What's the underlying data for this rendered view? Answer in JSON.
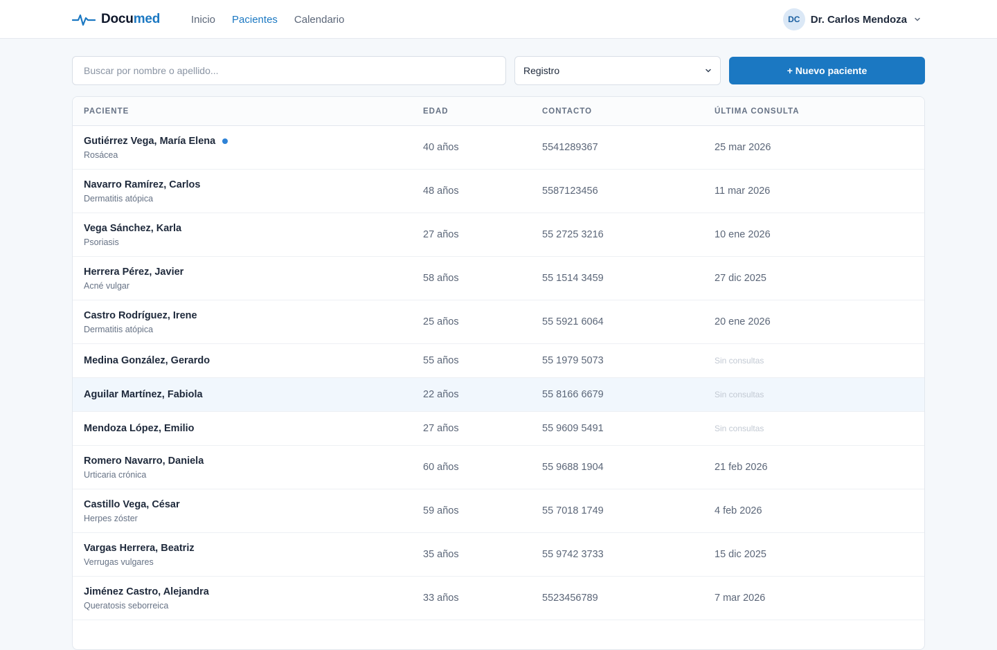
{
  "brand": {
    "name_main": "Docu",
    "name_accent": "med",
    "logo_icon": "pulse-icon",
    "accent_color": "#1b78c2"
  },
  "nav": [
    {
      "label": "Inicio",
      "active": false
    },
    {
      "label": "Pacientes",
      "active": true
    },
    {
      "label": "Calendario",
      "active": false
    }
  ],
  "user": {
    "initials": "DC",
    "name": "Dr. Carlos Mendoza"
  },
  "toolbar": {
    "search_placeholder": "Buscar por nombre o apellido...",
    "sort_value": "Registro",
    "new_button": "+ Nuevo paciente"
  },
  "table": {
    "columns": [
      "PACIENTE",
      "EDAD",
      "CONTACTO",
      "ÚLTIMA CONSULTA"
    ],
    "rows": [
      {
        "name": "Gutiérrez Vega, María Elena",
        "diagnosis": "Rosácea",
        "age": "40 años",
        "contact": "5541289367",
        "last": "25 mar 2026",
        "dot": true
      },
      {
        "name": "Navarro Ramírez, Carlos",
        "diagnosis": "Dermatitis atópica",
        "age": "48 años",
        "contact": "5587123456",
        "last": "11 mar 2026"
      },
      {
        "name": "Vega Sánchez, Karla",
        "diagnosis": "Psoriasis",
        "age": "27 años",
        "contact": "55 2725 3216",
        "last": "10 ene 2026"
      },
      {
        "name": "Herrera Pérez, Javier",
        "diagnosis": "Acné vulgar",
        "age": "58 años",
        "contact": "55 1514 3459",
        "last": "27 dic 2025"
      },
      {
        "name": "Castro Rodríguez, Irene",
        "diagnosis": "Dermatitis atópica",
        "age": "25 años",
        "contact": "55 5921 6064",
        "last": "20 ene 2026"
      },
      {
        "name": "Medina González, Gerardo",
        "diagnosis": "",
        "age": "55 años",
        "contact": "55 1979 5073",
        "last": "Sin consultas",
        "muted": true
      },
      {
        "name": "Aguilar Martínez, Fabiola",
        "diagnosis": "",
        "age": "22 años",
        "contact": "55 8166 6679",
        "last": "Sin consultas",
        "muted": true,
        "hover": true
      },
      {
        "name": "Mendoza López, Emilio",
        "diagnosis": "",
        "age": "27 años",
        "contact": "55 9609 5491",
        "last": "Sin consultas",
        "muted": true
      },
      {
        "name": "Romero Navarro, Daniela",
        "diagnosis": "Urticaria crónica",
        "age": "60 años",
        "contact": "55 9688 1904",
        "last": "21 feb 2026"
      },
      {
        "name": "Castillo Vega, César",
        "diagnosis": "Herpes zóster",
        "age": "59 años",
        "contact": "55 7018 1749",
        "last": "4 feb 2026"
      },
      {
        "name": "Vargas Herrera, Beatriz",
        "diagnosis": "Verrugas vulgares",
        "age": "35 años",
        "contact": "55 9742 3733",
        "last": "15 dic 2025"
      },
      {
        "name": "Jiménez Castro, Alejandra",
        "diagnosis": "Queratosis seborreica",
        "age": "33 años",
        "contact": "5523456789",
        "last": "7 mar 2026"
      }
    ]
  }
}
